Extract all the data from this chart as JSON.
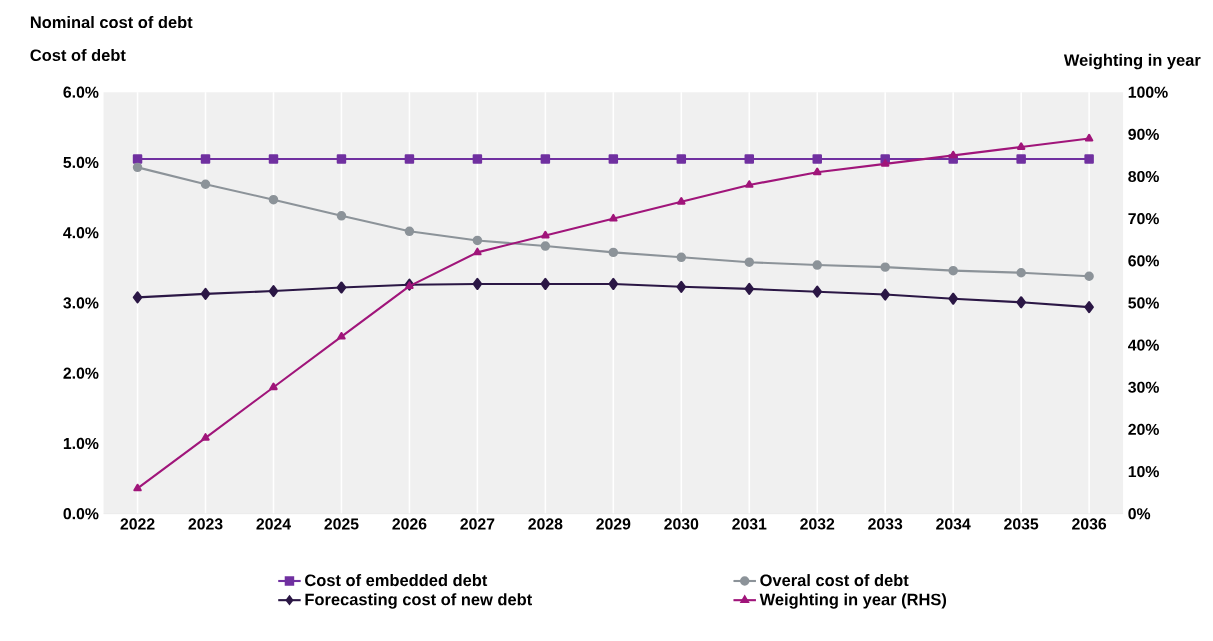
{
  "chart_data": {
    "type": "line",
    "title": "Nominal cost of debt",
    "ylabel": "Cost of debt",
    "y2label": "Weighting in year",
    "categories": [
      "2022",
      "2023",
      "2024",
      "2025",
      "2026",
      "2027",
      "2028",
      "2029",
      "2030",
      "2031",
      "2032",
      "2033",
      "2034",
      "2035",
      "2036"
    ],
    "series": [
      {
        "name": "Cost of embedded debt",
        "color": "#7030a0",
        "marker": "square",
        "values": [
          5.05,
          5.05,
          5.05,
          5.05,
          5.05,
          5.05,
          5.05,
          5.05,
          5.05,
          5.05,
          5.05,
          5.05,
          5.05,
          5.05,
          5.05
        ]
      },
      {
        "name": "Overal cost of debt",
        "color": "#8c9399",
        "marker": "circle",
        "values": [
          4.93,
          4.69,
          4.47,
          4.24,
          4.02,
          3.89,
          3.81,
          3.72,
          3.65,
          3.58,
          3.54,
          3.51,
          3.46,
          3.43,
          3.38
        ]
      },
      {
        "name": "Forecasting cost of new debt",
        "color": "#2b1745",
        "marker": "diamond",
        "values": [
          3.08,
          3.13,
          3.17,
          3.22,
          3.26,
          3.27,
          3.27,
          3.27,
          3.23,
          3.2,
          3.16,
          3.12,
          3.06,
          3.01,
          2.94
        ]
      },
      {
        "name": "Weighting in year (RHS)",
        "color": "#a0157a",
        "marker": "triangle",
        "axis": "y2",
        "values": [
          6,
          18,
          30,
          42,
          54,
          62,
          66,
          70,
          74,
          78,
          81,
          83,
          85,
          87,
          89
        ]
      }
    ],
    "ylim": [
      0,
      6
    ],
    "yticks": [
      {
        "value": 0,
        "label": "0.0%"
      },
      {
        "value": 1,
        "label": "1.0%"
      },
      {
        "value": 2,
        "label": "2.0%"
      },
      {
        "value": 3,
        "label": "3.0%"
      },
      {
        "value": 4,
        "label": "4.0%"
      },
      {
        "value": 5,
        "label": "5.0%"
      },
      {
        "value": 6,
        "label": "6.0%"
      }
    ],
    "y2lim": [
      0,
      100
    ],
    "y2ticks": [
      {
        "value": 0,
        "label": "0%"
      },
      {
        "value": 10,
        "label": "10%"
      },
      {
        "value": 20,
        "label": "20%"
      },
      {
        "value": 30,
        "label": "30%"
      },
      {
        "value": 40,
        "label": "40%"
      },
      {
        "value": 50,
        "label": "50%"
      },
      {
        "value": 60,
        "label": "60%"
      },
      {
        "value": 70,
        "label": "70%"
      },
      {
        "value": 80,
        "label": "80%"
      },
      {
        "value": 90,
        "label": "90%"
      },
      {
        "value": 100,
        "label": "100%"
      }
    ],
    "grid": "x",
    "legend": "bottom",
    "line_style": "solid"
  }
}
